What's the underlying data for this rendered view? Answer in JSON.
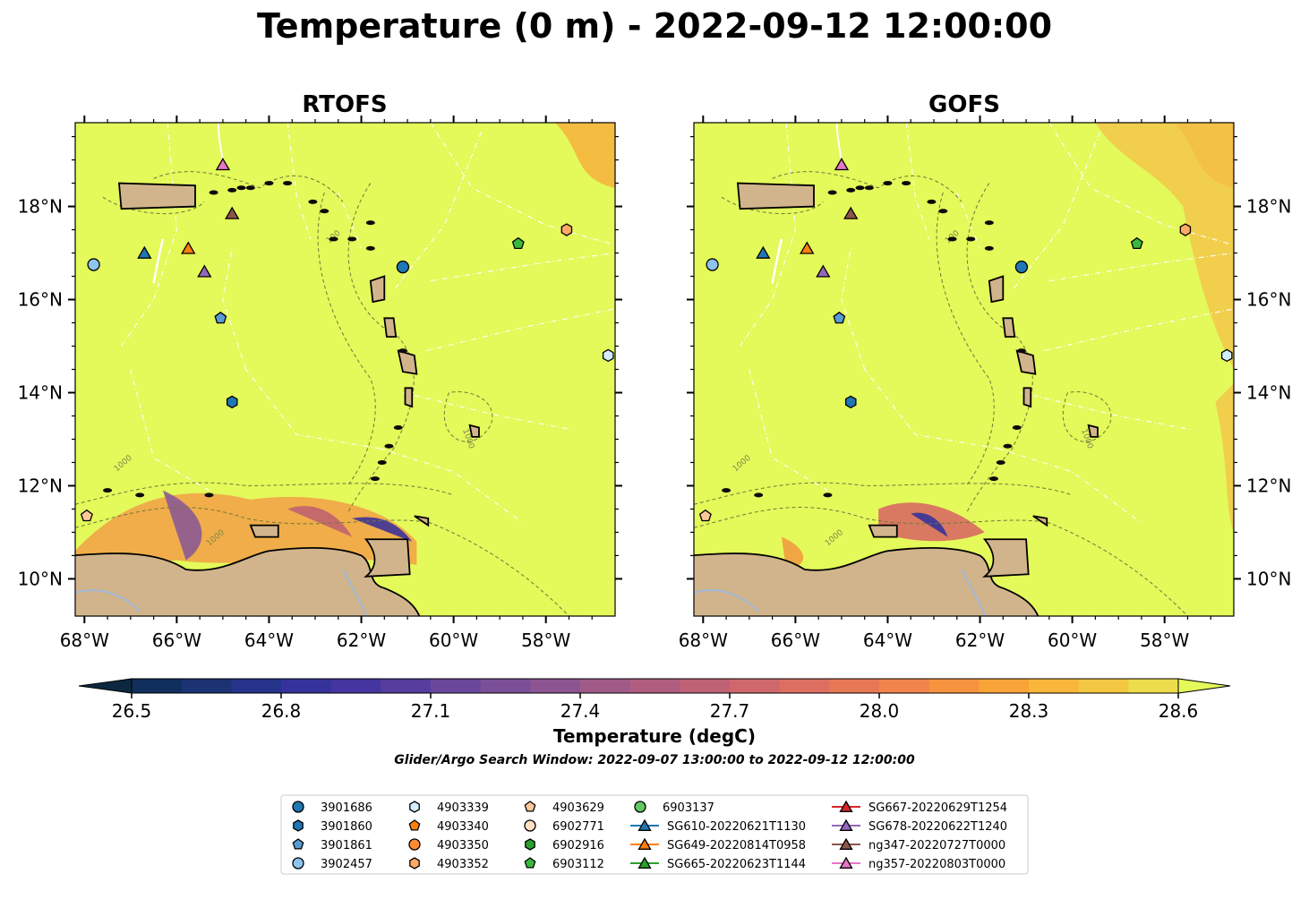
{
  "title": "Temperature (0 m) - 2022-09-12 12:00:00",
  "panels": [
    {
      "title": "RTOFS",
      "ytick_side": "left"
    },
    {
      "title": "GOFS",
      "ytick_side": "right"
    }
  ],
  "map": {
    "lon_range": [
      -68.2,
      -56.5
    ],
    "lat_range": [
      9.2,
      19.8
    ],
    "xticks": [
      {
        "v": -68,
        "label": "68°W"
      },
      {
        "v": -66,
        "label": "66°W"
      },
      {
        "v": -64,
        "label": "64°W"
      },
      {
        "v": -62,
        "label": "62°W"
      },
      {
        "v": -60,
        "label": "60°W"
      },
      {
        "v": -58,
        "label": "58°W"
      }
    ],
    "yticks": [
      {
        "v": 10,
        "label": "10°N"
      },
      {
        "v": 12,
        "label": "12°N"
      },
      {
        "v": 14,
        "label": "14°N"
      },
      {
        "v": 16,
        "label": "16°N"
      },
      {
        "v": 18,
        "label": "18°N"
      }
    ],
    "background_color": "#e4f95a",
    "land_color": "#d2b48c",
    "contour_labels": [
      "1000",
      "100"
    ]
  },
  "colorbar": {
    "label": "Temperature (degC)",
    "ticks": [
      "26.5",
      "26.8",
      "27.1",
      "27.4",
      "27.7",
      "28.0",
      "28.3",
      "28.6"
    ],
    "min": 26.5,
    "max": 28.6,
    "colors": [
      "#0d2740",
      "#112f5c",
      "#1b3273",
      "#25338a",
      "#35339b",
      "#4535a0",
      "#573d9e",
      "#6a479b",
      "#7a4f97",
      "#8c5591",
      "#9f5a88",
      "#b05d80",
      "#c06276",
      "#cf686c",
      "#dc6f62",
      "#e77856",
      "#f0844a",
      "#f6933e",
      "#f9a438",
      "#f8b63a",
      "#f3c742",
      "#eddc4c",
      "#e4f95a"
    ]
  },
  "search_window": "Glider/Argo Search Window: 2022-09-07 13:00:00 to 2022-09-12 12:00:00",
  "legend": {
    "columns": [
      [
        {
          "label": "3901686",
          "shape": "circle",
          "color": "#1f77b4"
        },
        {
          "label": "3901860",
          "shape": "hexagon",
          "color": "#1f77b4"
        },
        {
          "label": "3901861",
          "shape": "pentagon",
          "color": "#5a9bd4"
        },
        {
          "label": "3902457",
          "shape": "circle",
          "color": "#8dc4ee"
        }
      ],
      [
        {
          "label": "4903339",
          "shape": "hexagon",
          "color": "#d4ecfb"
        },
        {
          "label": "4903340",
          "shape": "pentagon",
          "color": "#ff7f0e"
        },
        {
          "label": "4903350",
          "shape": "circle",
          "color": "#ff8c33"
        },
        {
          "label": "4903352",
          "shape": "hexagon",
          "color": "#ffab66"
        }
      ],
      [
        {
          "label": "4903629",
          "shape": "pentagon",
          "color": "#ffc89a"
        },
        {
          "label": "6902771",
          "shape": "circle",
          "color": "#ffe0c4"
        },
        {
          "label": "6902916",
          "shape": "hexagon",
          "color": "#2ca02c"
        },
        {
          "label": "6903112",
          "shape": "pentagon",
          "color": "#3cb83c"
        }
      ],
      [
        {
          "label": "6903137",
          "shape": "circle",
          "color": "#62c862"
        },
        {
          "label": "SG610-20220621T1130",
          "shape": "triangle",
          "color": "#1f77b4",
          "line": true
        },
        {
          "label": "SG649-20220814T0958",
          "shape": "triangle",
          "color": "#ff7f0e",
          "line": true
        },
        {
          "label": "SG665-20220623T1144",
          "shape": "triangle",
          "color": "#2ca02c",
          "line": true
        }
      ],
      [
        {
          "label": "SG667-20220629T1254",
          "shape": "triangle",
          "color": "#d62728",
          "line": true
        },
        {
          "label": "SG678-20220622T1240",
          "shape": "triangle",
          "color": "#9467bd",
          "line": true
        },
        {
          "label": "ng347-20220727T0000",
          "shape": "triangle",
          "color": "#8c564b",
          "line": true
        },
        {
          "label": "ng357-20220803T0000",
          "shape": "triangle",
          "color": "#e377c2",
          "line": true
        }
      ]
    ]
  },
  "markers": [
    {
      "id": "3901686",
      "lon": -61.1,
      "lat": 16.7,
      "shape": "circle",
      "color": "#1f77b4"
    },
    {
      "id": "3901860",
      "lon": -64.8,
      "lat": 13.8,
      "shape": "hexagon",
      "color": "#1f77b4"
    },
    {
      "id": "3901861",
      "lon": -65.05,
      "lat": 15.6,
      "shape": "pentagon",
      "color": "#5a9bd4"
    },
    {
      "id": "3902457",
      "lon": -67.8,
      "lat": 16.75,
      "shape": "circle",
      "color": "#8dc4ee"
    },
    {
      "id": "4903339",
      "lon": -56.65,
      "lat": 14.8,
      "shape": "hexagon",
      "color": "#d4ecfb"
    },
    {
      "id": "4903352",
      "lon": -57.55,
      "lat": 17.5,
      "shape": "hexagon",
      "color": "#ffab66"
    },
    {
      "id": "4903629",
      "lon": -67.95,
      "lat": 11.35,
      "shape": "pentagon",
      "color": "#ffc89a"
    },
    {
      "id": "6903112",
      "lon": -58.6,
      "lat": 17.2,
      "shape": "pentagon",
      "color": "#3cb83c"
    },
    {
      "id": "SG610-20220621T1130",
      "lon": -66.7,
      "lat": 17.0,
      "shape": "triangle",
      "color": "#1f77b4"
    },
    {
      "id": "SG649-20220814T0958",
      "lon": -65.75,
      "lat": 17.1,
      "shape": "triangle",
      "color": "#ff7f0e"
    },
    {
      "id": "SG678-20220622T1240",
      "lon": -65.4,
      "lat": 16.6,
      "shape": "triangle",
      "color": "#9467bd"
    },
    {
      "id": "ng347-20220727T0000",
      "lon": -64.8,
      "lat": 17.85,
      "shape": "triangle",
      "color": "#8c564b"
    },
    {
      "id": "ng357-20220803T0000",
      "lon": -65.0,
      "lat": 18.9,
      "shape": "triangle",
      "color": "#e377c2"
    }
  ]
}
